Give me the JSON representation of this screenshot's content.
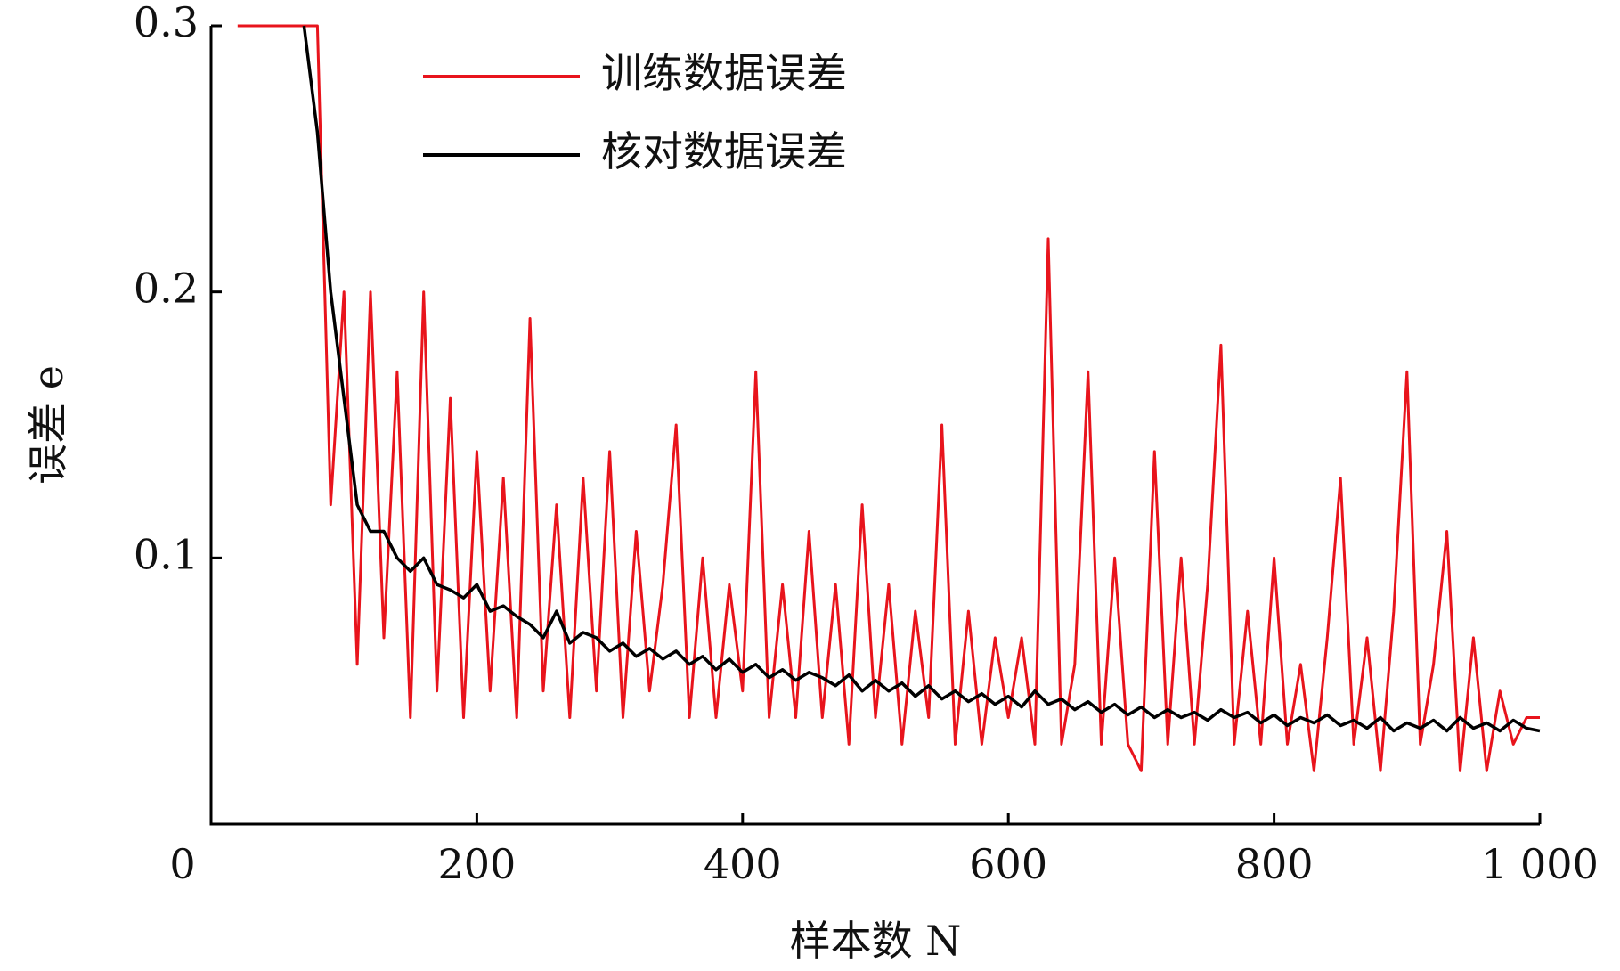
{
  "chart_data": {
    "type": "line",
    "x_label": "样本数 N",
    "y_label": "误差 e",
    "xlim": [
      0,
      1000
    ],
    "xticks": [
      0,
      200,
      400,
      600,
      800,
      {
        "value": 1000,
        "label": "1 000"
      }
    ],
    "ylim": [
      0,
      0.3
    ],
    "yticks": [
      0.1,
      0.2,
      0.3
    ],
    "legend": "upper center",
    "x": [
      10,
      20,
      30,
      40,
      50,
      60,
      70,
      80,
      90,
      100,
      110,
      120,
      130,
      140,
      150,
      160,
      170,
      180,
      190,
      200,
      210,
      220,
      230,
      240,
      250,
      260,
      270,
      280,
      290,
      300,
      310,
      320,
      330,
      340,
      350,
      360,
      370,
      380,
      390,
      400,
      410,
      420,
      430,
      440,
      450,
      460,
      470,
      480,
      490,
      500,
      510,
      520,
      530,
      540,
      550,
      560,
      570,
      580,
      590,
      600,
      610,
      620,
      630,
      640,
      650,
      660,
      670,
      680,
      690,
      700,
      710,
      720,
      730,
      740,
      750,
      760,
      770,
      780,
      790,
      800,
      810,
      820,
      830,
      840,
      850,
      860,
      870,
      880,
      890,
      900,
      910,
      920,
      930,
      940,
      950,
      960,
      970,
      980,
      990,
      1000
    ],
    "series": [
      {
        "name": "训练数据误差",
        "color": "#e8141c",
        "values": [
          null,
          0.3,
          0.3,
          0.3,
          0.3,
          0.3,
          0.3,
          0.3,
          0.12,
          0.2,
          0.06,
          0.2,
          0.07,
          0.17,
          0.04,
          0.2,
          0.05,
          0.16,
          0.04,
          0.14,
          0.05,
          0.13,
          0.04,
          0.19,
          0.05,
          0.12,
          0.04,
          0.13,
          0.05,
          0.14,
          0.04,
          0.11,
          0.05,
          0.09,
          0.15,
          0.04,
          0.1,
          0.04,
          0.09,
          0.05,
          0.17,
          0.04,
          0.09,
          0.04,
          0.11,
          0.04,
          0.09,
          0.03,
          0.12,
          0.04,
          0.09,
          0.03,
          0.08,
          0.04,
          0.15,
          0.03,
          0.08,
          0.03,
          0.07,
          0.04,
          0.07,
          0.03,
          0.22,
          0.03,
          0.06,
          0.17,
          0.03,
          0.1,
          0.03,
          0.02,
          0.14,
          0.03,
          0.1,
          0.03,
          0.09,
          0.18,
          0.03,
          0.08,
          0.03,
          0.1,
          0.03,
          0.06,
          0.02,
          0.07,
          0.13,
          0.03,
          0.07,
          0.02,
          0.08,
          0.17,
          0.03,
          0.06,
          0.11,
          0.02,
          0.07,
          0.02,
          0.05,
          0.03,
          0.04,
          0.04
        ]
      },
      {
        "name": "核对数据误差",
        "color": "#000000",
        "values": [
          null,
          null,
          null,
          null,
          null,
          null,
          0.3,
          0.26,
          0.2,
          0.16,
          0.12,
          0.11,
          0.11,
          0.1,
          0.095,
          0.1,
          0.09,
          0.088,
          0.085,
          0.09,
          0.08,
          0.082,
          0.078,
          0.075,
          0.07,
          0.08,
          0.068,
          0.072,
          0.07,
          0.065,
          0.068,
          0.063,
          0.066,
          0.062,
          0.065,
          0.06,
          0.063,
          0.058,
          0.062,
          0.057,
          0.06,
          0.055,
          0.058,
          0.054,
          0.057,
          0.055,
          0.052,
          0.056,
          0.05,
          0.054,
          0.05,
          0.053,
          0.048,
          0.052,
          0.047,
          0.05,
          0.046,
          0.049,
          0.045,
          0.048,
          0.044,
          0.05,
          0.045,
          0.047,
          0.043,
          0.046,
          0.042,
          0.045,
          0.041,
          0.044,
          0.04,
          0.043,
          0.04,
          0.042,
          0.039,
          0.043,
          0.04,
          0.042,
          0.038,
          0.041,
          0.037,
          0.04,
          0.038,
          0.041,
          0.037,
          0.039,
          0.036,
          0.04,
          0.035,
          0.038,
          0.036,
          0.039,
          0.035,
          0.04,
          0.036,
          0.038,
          0.035,
          0.039,
          0.036,
          0.035
        ]
      }
    ]
  }
}
